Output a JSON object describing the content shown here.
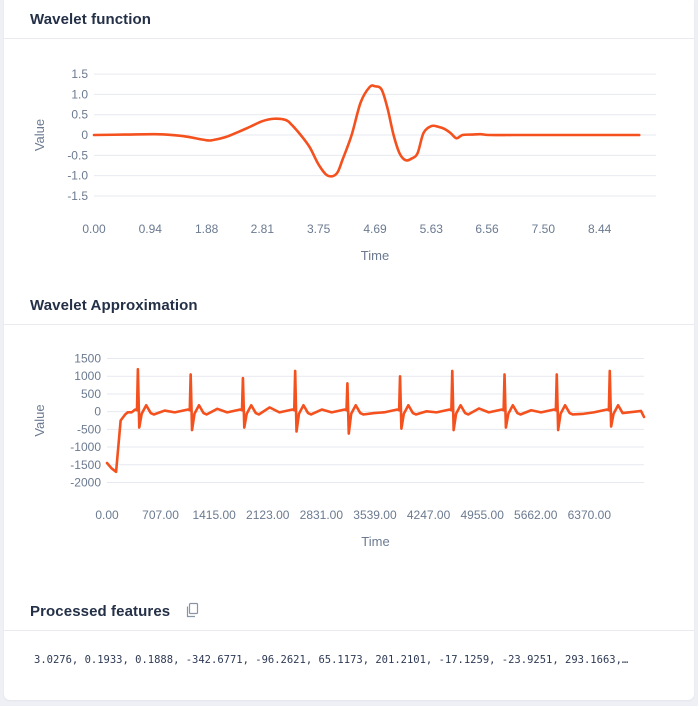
{
  "sections": {
    "wavelet_function": {
      "title": "Wavelet function"
    },
    "wavelet_approximation": {
      "title": "Wavelet Approximation"
    },
    "processed_features": {
      "title": "Processed features",
      "copy_icon": "copy-icon",
      "text": "3.0276, 0.1933, 0.1888, -342.6771, -96.2621, 65.1173, 201.2101, -17.1259, -23.9251, 293.1663,…"
    }
  },
  "colors": {
    "line": "#f4511e",
    "grid": "#e6e9ef",
    "axis": "#6b7a90"
  },
  "chart_data": [
    {
      "type": "line",
      "xlabel": "Time",
      "ylabel": "Value",
      "xlim": [
        0,
        9.38
      ],
      "ylim": [
        -1.6,
        1.6
      ],
      "x_ticks": [
        0,
        0.94,
        1.88,
        2.81,
        3.75,
        4.69,
        5.63,
        6.56,
        7.5,
        8.44
      ],
      "x_tick_labels": [
        "0.00",
        "0.94",
        "1.88",
        "2.81",
        "3.75",
        "4.69",
        "5.63",
        "6.56",
        "7.50",
        "8.44"
      ],
      "y_ticks": [
        1.5,
        1.0,
        0.5,
        0,
        -0.5,
        -1.0,
        -1.5
      ],
      "y_tick_labels": [
        "1.5",
        "1.0",
        "0.5",
        "0",
        "-0.5",
        "-1.0",
        "-1.5"
      ],
      "series": [
        {
          "x": [
            0,
            0.5,
            1.0,
            1.2,
            1.5,
            1.88,
            2.0,
            2.2,
            2.4,
            2.6,
            2.81,
            3.0,
            3.2,
            3.3,
            3.45,
            3.6,
            3.75,
            3.9,
            4.05,
            4.15,
            4.3,
            4.45,
            4.6,
            4.69,
            4.8,
            4.9,
            5.0,
            5.1,
            5.2,
            5.3,
            5.4,
            5.5,
            5.63,
            5.75,
            5.85,
            5.95,
            6.05,
            6.15,
            6.3,
            6.45,
            6.6,
            7.0,
            7.5,
            8.0,
            8.44,
            9.1
          ],
          "y": [
            0,
            0.01,
            0.02,
            0.01,
            -0.03,
            -0.13,
            -0.12,
            -0.05,
            0.07,
            0.2,
            0.34,
            0.4,
            0.37,
            0.25,
            0.0,
            -0.3,
            -0.73,
            -1.0,
            -0.95,
            -0.6,
            0.0,
            0.8,
            1.18,
            1.2,
            1.12,
            0.65,
            0.0,
            -0.45,
            -0.62,
            -0.58,
            -0.45,
            0.05,
            0.22,
            0.2,
            0.15,
            0.05,
            -0.08,
            0.0,
            0.01,
            0.02,
            0.0,
            0.0,
            0.0,
            0.0,
            0.0,
            0.0
          ]
        }
      ]
    },
    {
      "type": "line",
      "xlabel": "Time",
      "ylabel": "Value",
      "xlim": [
        0,
        7092
      ],
      "ylim": [
        -2100,
        1600
      ],
      "x_ticks": [
        0,
        707,
        1415,
        2123,
        2831,
        3539,
        4247,
        4955,
        5662,
        6370
      ],
      "x_tick_labels": [
        "0.00",
        "707.00",
        "1415.00",
        "2123.00",
        "2831.00",
        "3539.00",
        "4247.00",
        "4955.00",
        "5662.00",
        "6370.00"
      ],
      "y_ticks": [
        1500,
        1000,
        500,
        0,
        -500,
        -1000,
        -1500,
        -2000
      ],
      "y_tick_labels": [
        "1500",
        "1000",
        "500",
        "0",
        "-500",
        "-1000",
        "-1500",
        "-2000"
      ],
      "peaks_x": [
        408,
        1105,
        1795,
        2485,
        3175,
        3870,
        4560,
        5250,
        5940,
        6640
      ],
      "peaks_y": [
        1200,
        1050,
        950,
        1150,
        800,
        1000,
        1150,
        1050,
        1050,
        1150
      ],
      "troughs_y": [
        -450,
        -520,
        -450,
        -560,
        -620,
        -480,
        -520,
        -450,
        -520,
        -420
      ],
      "start": {
        "x": [
          0,
          60,
          120,
          180
        ],
        "y": [
          -1450,
          -1600,
          -1700,
          -250
        ]
      },
      "end_x": 7092,
      "end_y": -150
    }
  ]
}
